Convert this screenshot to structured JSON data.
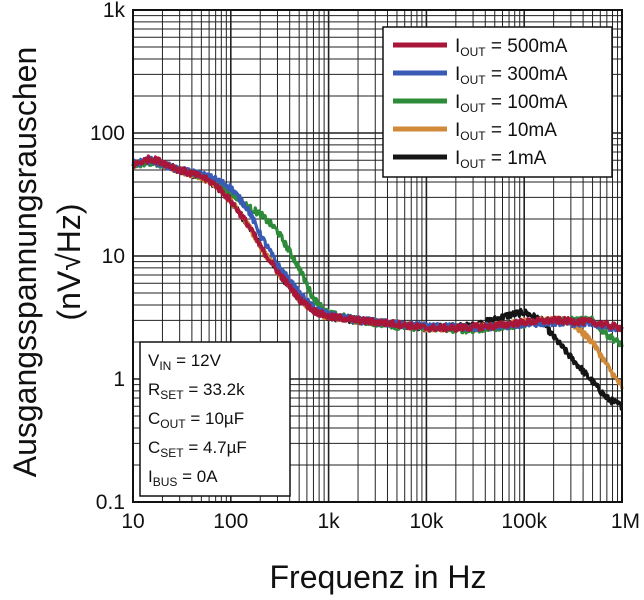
{
  "chart_data": {
    "type": "line",
    "title": "",
    "xlabel": "Frequenz in Hz",
    "ylabel_line1": "Ausgangsspannungsrauschen",
    "ylabel_line2": "(nV√Hz)",
    "x_scale": "log",
    "y_scale": "log",
    "xlim": [
      10,
      1000000
    ],
    "ylim": [
      0.1,
      1000
    ],
    "x_ticks": [
      {
        "value": 10,
        "label": "10"
      },
      {
        "value": 100,
        "label": "100"
      },
      {
        "value": 1000,
        "label": "1k"
      },
      {
        "value": 10000,
        "label": "10k"
      },
      {
        "value": 100000,
        "label": "100k"
      },
      {
        "value": 1000000,
        "label": "1M"
      }
    ],
    "y_ticks": [
      {
        "value": 0.1,
        "label": "0.1"
      },
      {
        "value": 1,
        "label": "1"
      },
      {
        "value": 10,
        "label": "10"
      },
      {
        "value": 100,
        "label": "100"
      },
      {
        "value": 1000,
        "label": "1k"
      }
    ],
    "grid": true,
    "legend_position": "top-right",
    "series": [
      {
        "name": "IOUT = 500mA",
        "label_main": "I",
        "label_sub": "OUT",
        "label_rest": " = 500mA",
        "color": "#a8163a",
        "x": [
          10,
          15,
          20,
          30,
          50,
          70,
          100,
          150,
          200,
          300,
          500,
          700,
          1000,
          1500,
          2000,
          3000,
          5000,
          10000,
          20000,
          50000,
          100000,
          200000,
          500000,
          1000000
        ],
        "y": [
          55,
          62,
          58,
          50,
          44,
          38,
          28,
          18,
          12,
          7.5,
          4.5,
          3.6,
          3.2,
          3.1,
          3.0,
          2.9,
          2.8,
          2.6,
          2.6,
          2.7,
          2.9,
          3.0,
          2.9,
          2.6
        ]
      },
      {
        "name": "IOUT = 300mA",
        "label_main": "I",
        "label_sub": "OUT",
        "label_rest": " = 300mA",
        "color": "#3a5bb5",
        "x": [
          10,
          15,
          20,
          30,
          50,
          70,
          100,
          150,
          200,
          300,
          500,
          700,
          1000,
          2000,
          5000,
          10000,
          30000,
          100000,
          200000,
          500000,
          1000000
        ],
        "y": [
          56,
          60,
          56,
          50,
          46,
          42,
          36,
          24,
          15,
          8.5,
          5.0,
          3.8,
          3.3,
          3.0,
          2.8,
          2.7,
          2.6,
          2.8,
          2.9,
          2.8,
          2.5
        ]
      },
      {
        "name": "IOUT = 100mA",
        "label_main": "I",
        "label_sub": "OUT",
        "label_rest": " = 100mA",
        "color": "#2e8b3a",
        "x": [
          10,
          15,
          20,
          30,
          50,
          70,
          100,
          150,
          200,
          300,
          500,
          700,
          1000,
          2000,
          5000,
          10000,
          30000,
          100000,
          200000,
          500000,
          700000,
          1000000
        ],
        "y": [
          55,
          58,
          55,
          50,
          45,
          40,
          33,
          25,
          22,
          16,
          8.0,
          4.5,
          3.4,
          3.0,
          2.7,
          2.6,
          2.5,
          2.8,
          3.0,
          3.0,
          2.3,
          1.9
        ]
      },
      {
        "name": "IOUT = 10mA",
        "label_main": "I",
        "label_sub": "OUT",
        "label_rest": " = 10mA",
        "color": "#d08a3a",
        "x": [
          10,
          15,
          20,
          30,
          50,
          70,
          100,
          150,
          200,
          300,
          500,
          700,
          1000,
          2000,
          5000,
          10000,
          30000,
          100000,
          200000,
          300000,
          500000,
          700000,
          1000000
        ],
        "y": [
          55,
          60,
          56,
          50,
          44,
          38,
          28,
          18,
          12,
          7.5,
          4.5,
          3.6,
          3.2,
          3.0,
          2.8,
          2.6,
          2.6,
          2.9,
          3.0,
          2.9,
          2.0,
          1.3,
          0.85
        ]
      },
      {
        "name": "IOUT = 1mA",
        "label_main": "I",
        "label_sub": "OUT",
        "label_rest": " = 1mA",
        "color": "#151515",
        "x": [
          10,
          15,
          20,
          30,
          50,
          70,
          100,
          150,
          200,
          300,
          500,
          700,
          1000,
          2000,
          5000,
          10000,
          30000,
          70000,
          100000,
          150000,
          200000,
          300000,
          500000,
          700000,
          1000000
        ],
        "y": [
          55,
          60,
          56,
          50,
          44,
          38,
          28,
          18,
          12,
          7.5,
          4.5,
          3.6,
          3.2,
          3.0,
          2.8,
          2.6,
          2.7,
          3.3,
          3.5,
          3.0,
          2.2,
          1.5,
          0.95,
          0.7,
          0.6
        ]
      }
    ],
    "conditions": [
      {
        "main": "V",
        "sub": "IN",
        "rest": " = 12V"
      },
      {
        "main": "R",
        "sub": "SET",
        "rest": " = 33.2k"
      },
      {
        "main": "C",
        "sub": "OUT",
        "rest": " = 10µF"
      },
      {
        "main": "C",
        "sub": "SET",
        "rest": " = 4.7µF"
      },
      {
        "main": "I",
        "sub": "BUS",
        "rest": " = 0A"
      }
    ]
  }
}
